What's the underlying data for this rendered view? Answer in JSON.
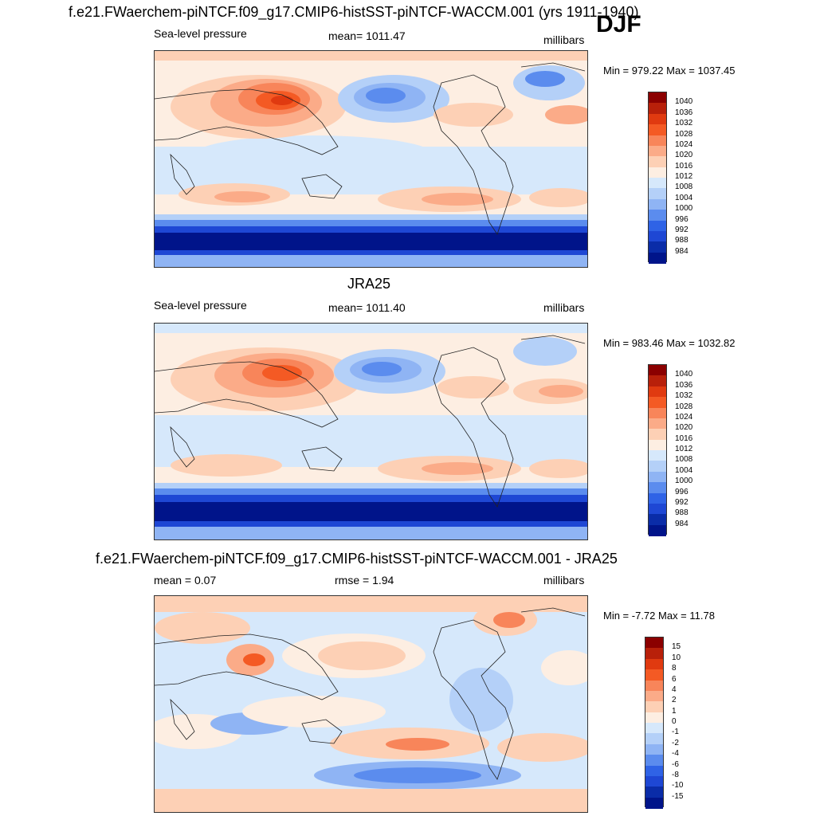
{
  "season": "DJF",
  "panels": [
    {
      "title": "f.e21.FWaerchem-piNTCF.f09_g17.CMIP6-histSST-piNTCF-WACCM.001 (yrs 1911-1940)",
      "left_label": "Sea-level pressure",
      "center_label": "mean= 1011.47",
      "right_label": "millibars",
      "minmax": "Min = 979.22 Max = 1037.45",
      "levels": [
        "1040",
        "1036",
        "1032",
        "1028",
        "1024",
        "1020",
        "1016",
        "1012",
        "1008",
        "1004",
        "1000",
        "996",
        "992",
        "988",
        "984"
      ],
      "colors": [
        "#8b0000",
        "#b8200a",
        "#e03a10",
        "#f45a24",
        "#f8855a",
        "#fbab88",
        "#fdd0b5",
        "#fdeee2",
        "#d6e8fb",
        "#b4d0f8",
        "#8fb4f4",
        "#5b8cee",
        "#2f63e6",
        "#1e47d4",
        "#0a2ca8",
        "#00148a"
      ]
    },
    {
      "title": "JRA25",
      "left_label": "Sea-level pressure",
      "center_label": "mean= 1011.40",
      "right_label": "millibars",
      "minmax": "Min = 983.46 Max = 1032.82",
      "levels": [
        "1040",
        "1036",
        "1032",
        "1028",
        "1024",
        "1020",
        "1016",
        "1012",
        "1008",
        "1004",
        "1000",
        "996",
        "992",
        "988",
        "984"
      ],
      "colors": [
        "#8b0000",
        "#b8200a",
        "#e03a10",
        "#f45a24",
        "#f8855a",
        "#fbab88",
        "#fdd0b5",
        "#fdeee2",
        "#d6e8fb",
        "#b4d0f8",
        "#8fb4f4",
        "#5b8cee",
        "#2f63e6",
        "#1e47d4",
        "#0a2ca8",
        "#00148a"
      ]
    },
    {
      "title": "f.e21.FWaerchem-piNTCF.f09_g17.CMIP6-histSST-piNTCF-WACCM.001 - JRA25",
      "left_label": "mean =   0.07",
      "center_label": "rmse =   1.94",
      "right_label": "millibars",
      "minmax": "Min =  -7.72 Max =  11.78",
      "levels": [
        "15",
        "10",
        "8",
        "6",
        "4",
        "2",
        "1",
        "0",
        "-1",
        "-2",
        "-4",
        "-6",
        "-8",
        "-10",
        "-15"
      ],
      "colors": [
        "#8b0000",
        "#b8200a",
        "#e03a10",
        "#f45a24",
        "#f8855a",
        "#fbab88",
        "#fdd0b5",
        "#fdeee2",
        "#d6e8fb",
        "#b4d0f8",
        "#8fb4f4",
        "#5b8cee",
        "#2f63e6",
        "#1e47d4",
        "#0a2ca8",
        "#00148a"
      ]
    }
  ]
}
